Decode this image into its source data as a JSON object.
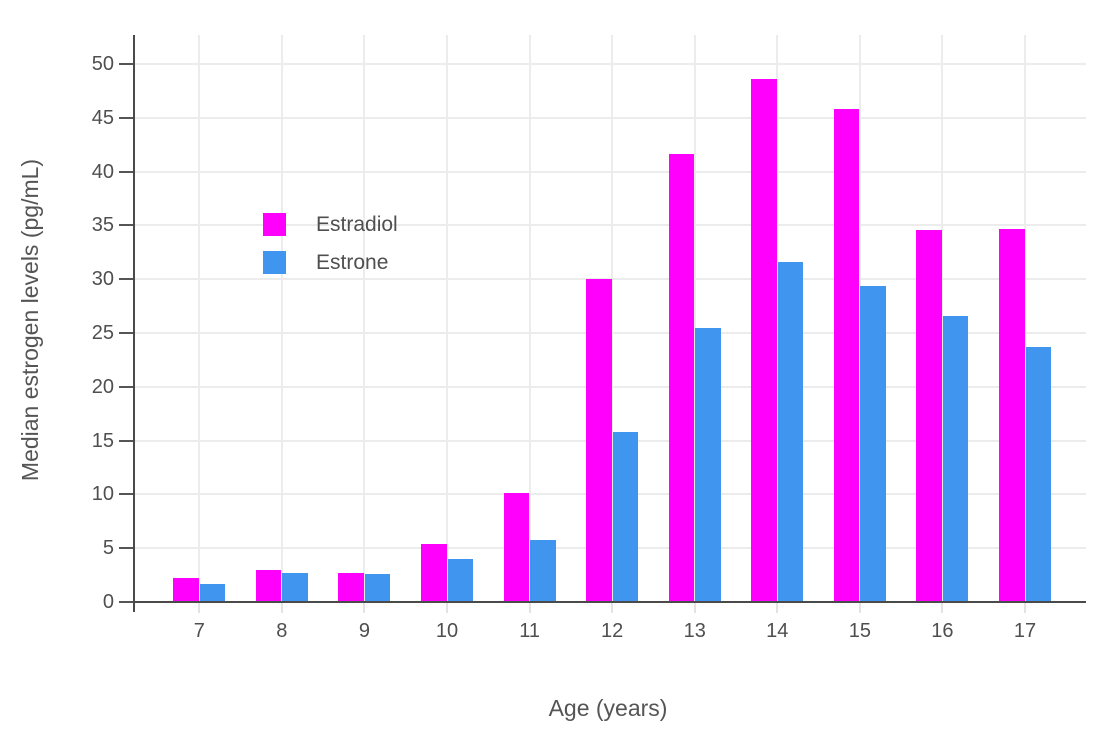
{
  "chart_data": {
    "type": "bar",
    "title": "",
    "xlabel": "Age (years)",
    "ylabel": "Median estrogen levels (pg/mL)",
    "categories": [
      "7",
      "8",
      "9",
      "10",
      "11",
      "12",
      "13",
      "14",
      "15",
      "16",
      "17"
    ],
    "series": [
      {
        "name": "Estradiol",
        "color": "#ff00fc",
        "values": [
          2.2,
          3.0,
          2.7,
          5.4,
          10.1,
          30.0,
          41.6,
          48.6,
          45.8,
          34.6,
          34.7
        ]
      },
      {
        "name": "Estrone",
        "color": "#4095ef",
        "values": [
          1.7,
          2.7,
          2.6,
          4.0,
          5.8,
          15.8,
          25.5,
          31.6,
          29.4,
          26.6,
          23.7
        ]
      }
    ],
    "ylim": [
      0,
      52.7
    ],
    "yticks": [
      0,
      5,
      10,
      15,
      20,
      25,
      30,
      35,
      40,
      45,
      50
    ],
    "grid": true,
    "legend_position": "inside-top-left"
  },
  "colors": {
    "background": "#ffffff",
    "grid": "#ececec",
    "axis_line": "#4a4a4a",
    "text": "#4f4f4f"
  }
}
